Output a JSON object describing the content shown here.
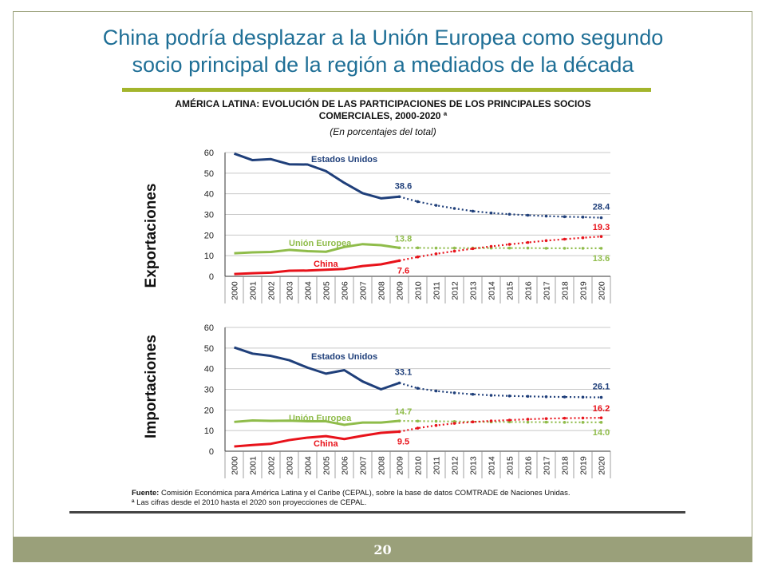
{
  "slide": {
    "title_line1": "China podría desplazar a la Unión Europea como segundo",
    "title_line2": "socio principal de la región a mediados de la década",
    "page_number": "20"
  },
  "chart_header": {
    "title_line1": "AMÉRICA LATINA: EVOLUCIÓN DE LAS PARTICIPACIONES DE LOS PRINCIPALES SOCIOS",
    "title_line2": "COMERCIALES, 2000-2020 ª",
    "subtitle": "(En porcentajes del total)"
  },
  "source": {
    "label": "Fuente:",
    "text": " Comisión Económica para América Latina y el Caribe (CEPAL), sobre la base de datos COMTRADE de Naciones Unidas.",
    "note": "ª Las cifras desde el 2010 hasta el 2020 son proyecciones de CEPAL."
  },
  "colors": {
    "usa": "#1f3f7a",
    "eu": "#8fbc4a",
    "china": "#e8121a",
    "axis": "#333333",
    "grid": "#c8c8c8"
  },
  "chart_data": [
    {
      "type": "line",
      "panel_label": "Exportaciones",
      "x": [
        "2000",
        "2001",
        "2002",
        "2003",
        "2004",
        "2005",
        "2006",
        "2007",
        "2008",
        "2009",
        "2010",
        "2011",
        "2012",
        "2013",
        "2014",
        "2015",
        "2016",
        "2017",
        "2018",
        "2019",
        "2020"
      ],
      "ylim": [
        0,
        60
      ],
      "yticks": [
        0,
        10,
        20,
        30,
        40,
        50,
        60
      ],
      "grid": true,
      "projection_start": "2009",
      "series": [
        {
          "name": "Estados Unidos",
          "key": "usa",
          "values": [
            59.5,
            56.3,
            56.8,
            54.3,
            54.2,
            51.0,
            45.3,
            40.3,
            37.8,
            38.6,
            36.2,
            34.4,
            32.9,
            31.6,
            30.7,
            30.1,
            29.6,
            29.2,
            28.9,
            28.7,
            28.4
          ],
          "labels": [
            {
              "x": "2009",
              "text": "38.6"
            },
            {
              "x": "2020",
              "text": "28.4"
            }
          ]
        },
        {
          "name": "Unión Europea",
          "key": "eu",
          "values": [
            11.2,
            11.6,
            11.8,
            12.8,
            12.2,
            11.9,
            14.2,
            15.6,
            15.1,
            13.8,
            13.8,
            13.7,
            13.7,
            13.7,
            13.7,
            13.7,
            13.7,
            13.6,
            13.6,
            13.6,
            13.6
          ],
          "labels": [
            {
              "x": "2009",
              "text": "13.8"
            },
            {
              "x": "2020",
              "text": "13.6"
            }
          ]
        },
        {
          "name": "China",
          "key": "china",
          "values": [
            1.1,
            1.5,
            1.8,
            2.7,
            2.8,
            3.2,
            3.6,
            5.0,
            5.8,
            7.6,
            9.4,
            10.9,
            12.2,
            13.4,
            14.5,
            15.5,
            16.4,
            17.3,
            18.0,
            18.7,
            19.3
          ],
          "labels": [
            {
              "x": "2009",
              "text": "7.6"
            },
            {
              "x": "2020",
              "text": "19.3"
            }
          ]
        }
      ]
    },
    {
      "type": "line",
      "panel_label": "Importaciones",
      "x": [
        "2000",
        "2001",
        "2002",
        "2003",
        "2004",
        "2005",
        "2006",
        "2007",
        "2008",
        "2009",
        "2010",
        "2011",
        "2012",
        "2013",
        "2014",
        "2015",
        "2016",
        "2017",
        "2018",
        "2019",
        "2020"
      ],
      "ylim": [
        0,
        60
      ],
      "yticks": [
        0,
        10,
        20,
        30,
        40,
        50,
        60
      ],
      "grid": true,
      "projection_start": "2009",
      "series": [
        {
          "name": "Estados Unidos",
          "key": "usa",
          "values": [
            50.3,
            47.3,
            46.2,
            44.1,
            40.5,
            37.6,
            39.3,
            33.8,
            30.0,
            33.1,
            30.5,
            29.2,
            28.3,
            27.6,
            27.1,
            26.8,
            26.6,
            26.4,
            26.3,
            26.2,
            26.1
          ],
          "labels": [
            {
              "x": "2009",
              "text": "33.1"
            },
            {
              "x": "2020",
              "text": "26.1"
            }
          ]
        },
        {
          "name": "Unión Europea",
          "key": "eu",
          "values": [
            14.2,
            14.9,
            14.7,
            14.8,
            14.5,
            14.5,
            12.8,
            13.9,
            13.9,
            14.7,
            14.6,
            14.5,
            14.4,
            14.3,
            14.2,
            14.2,
            14.1,
            14.1,
            14.0,
            14.0,
            14.0
          ],
          "labels": [
            {
              "x": "2009",
              "text": "14.7"
            },
            {
              "x": "2020",
              "text": "14.0"
            }
          ]
        },
        {
          "name": "China",
          "key": "china",
          "values": [
            2.3,
            3.0,
            3.6,
            5.4,
            6.6,
            7.3,
            5.9,
            7.5,
            8.9,
            9.5,
            11.2,
            12.5,
            13.5,
            14.2,
            14.7,
            15.1,
            15.5,
            15.8,
            16.0,
            16.1,
            16.2
          ],
          "labels": [
            {
              "x": "2009",
              "text": "9.5"
            },
            {
              "x": "2020",
              "text": "16.2"
            }
          ]
        }
      ]
    }
  ]
}
